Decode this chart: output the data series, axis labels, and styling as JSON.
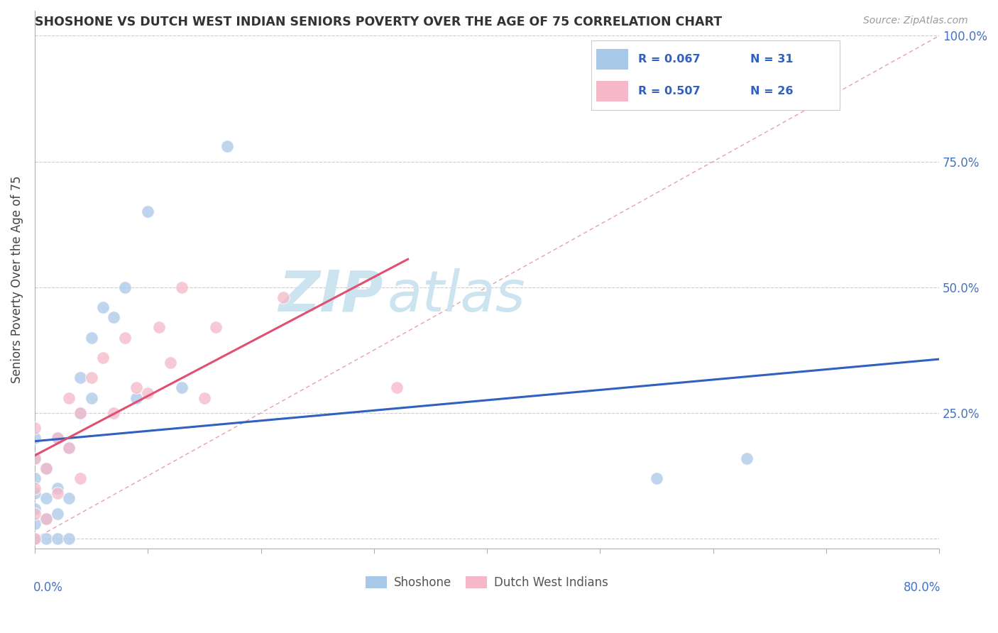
{
  "title": "SHOSHONE VS DUTCH WEST INDIAN SENIORS POVERTY OVER THE AGE OF 75 CORRELATION CHART",
  "source": "Source: ZipAtlas.com",
  "ylabel": "Seniors Poverty Over the Age of 75",
  "xlim": [
    0.0,
    0.8
  ],
  "ylim": [
    -0.02,
    1.05
  ],
  "yticks": [
    0.0,
    0.25,
    0.5,
    0.75,
    1.0
  ],
  "shoshone_color": "#a8c8e8",
  "dutch_color": "#f4b8c8",
  "shoshone_line_color": "#3060c0",
  "dutch_line_color": "#e05070",
  "diagonal_color": "#e8a0a8",
  "watermark_color": "#cce4f0",
  "shoshone_x": [
    0.0,
    0.0,
    0.0,
    0.0,
    0.0,
    0.0,
    0.0,
    0.01,
    0.01,
    0.01,
    0.01,
    0.02,
    0.02,
    0.02,
    0.02,
    0.03,
    0.03,
    0.03,
    0.04,
    0.04,
    0.05,
    0.05,
    0.06,
    0.07,
    0.08,
    0.09,
    0.1,
    0.13,
    0.17,
    0.55,
    0.63
  ],
  "shoshone_y": [
    0.0,
    0.03,
    0.06,
    0.09,
    0.12,
    0.16,
    0.2,
    0.0,
    0.04,
    0.08,
    0.14,
    0.0,
    0.05,
    0.1,
    0.2,
    0.0,
    0.08,
    0.18,
    0.25,
    0.32,
    0.28,
    0.4,
    0.46,
    0.44,
    0.5,
    0.28,
    0.65,
    0.3,
    0.78,
    0.12,
    0.16
  ],
  "dutch_x": [
    0.0,
    0.0,
    0.0,
    0.0,
    0.0,
    0.01,
    0.01,
    0.02,
    0.02,
    0.03,
    0.03,
    0.04,
    0.04,
    0.05,
    0.06,
    0.07,
    0.08,
    0.09,
    0.1,
    0.11,
    0.12,
    0.13,
    0.15,
    0.16,
    0.22,
    0.32
  ],
  "dutch_y": [
    0.0,
    0.05,
    0.1,
    0.16,
    0.22,
    0.04,
    0.14,
    0.09,
    0.2,
    0.18,
    0.28,
    0.12,
    0.25,
    0.32,
    0.36,
    0.25,
    0.4,
    0.3,
    0.29,
    0.42,
    0.35,
    0.5,
    0.28,
    0.42,
    0.48,
    0.3
  ],
  "shoshone_regression": [
    0.0,
    0.8,
    0.28,
    0.355
  ],
  "dutch_regression": [
    0.0,
    0.33,
    0.06,
    0.43
  ],
  "legend_items": [
    {
      "color": "#a8c8e8",
      "text_r": "R = 0.067",
      "text_n": "N = 31"
    },
    {
      "color": "#f4b8c8",
      "text_r": "R = 0.507",
      "text_n": "N = 26"
    }
  ]
}
